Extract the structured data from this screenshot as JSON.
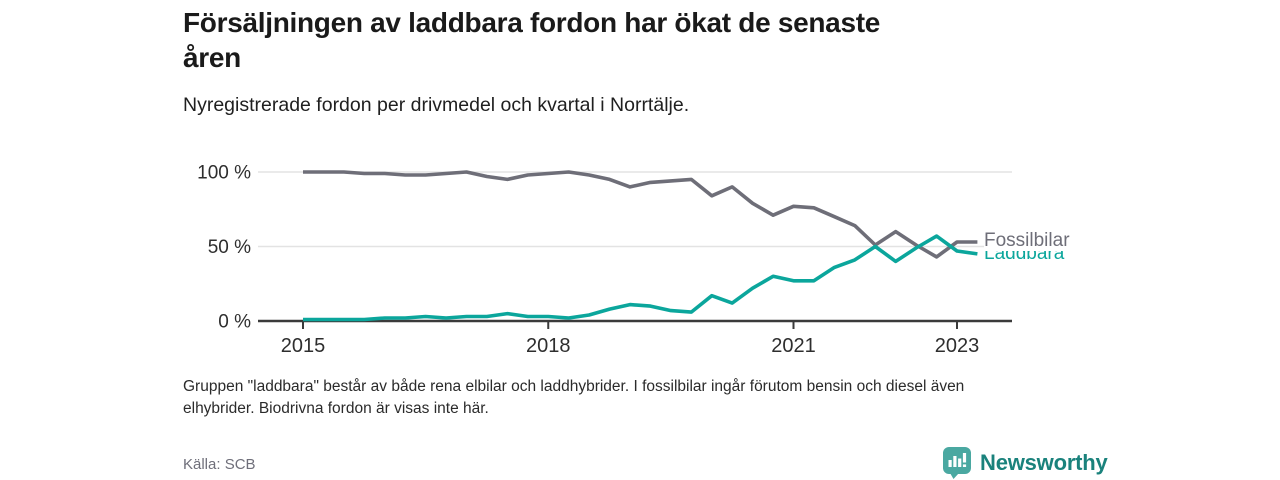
{
  "header": {
    "title": "Försäljningen av laddbara fordon har ökat de senaste åren",
    "title_line1": "Försäljningen av laddbara fordon har ökat de senaste",
    "title_line2": "åren",
    "subtitle": "Nyregistrerade fordon per drivmedel och kvartal i Norrtälje."
  },
  "footer": {
    "footnote_line1": "Gruppen \"laddbara\" består av både rena elbilar och laddhybrider. I fossilbilar ingår förutom bensin och diesel även",
    "footnote_line2": "elhybrider. Biodrivna fordon är visas inte här.",
    "source": "Källa: SCB",
    "brand": "Newsworthy"
  },
  "colors": {
    "fossil_line": "#6e6e78",
    "laddbara_line": "#0ba69c",
    "axis": "#3b3b3b",
    "gridline": "#e3e3e3",
    "tick_label": "#2e2e2e",
    "brand_icon_teal": "#4aa8a1",
    "brand_text_teal": "#1a827c"
  },
  "chart_data": {
    "type": "line",
    "title": "Försäljningen av laddbara fordon har ökat de senaste åren",
    "subtitle": "Nyregistrerade fordon per drivmedel och kvartal i Norrtälje.",
    "unit": "%",
    "x_start": "2015 Q1",
    "x_end": "2023 Q2",
    "points_per_year": 4,
    "ylim": [
      0,
      100
    ],
    "grid": "horizontal",
    "legend_position": "line-end-right",
    "y_ticks": [
      100,
      50,
      0
    ],
    "y_tick_labels": [
      "100 %",
      "50 %",
      "0 %"
    ],
    "x_tick_years": [
      2015,
      2018,
      2021,
      2023
    ],
    "x_tick_labels": [
      "2015",
      "2018",
      "2021",
      "2023"
    ],
    "x_labels": [
      "2015 Q1",
      "2015 Q2",
      "2015 Q3",
      "2015 Q4",
      "2016 Q1",
      "2016 Q2",
      "2016 Q3",
      "2016 Q4",
      "2017 Q1",
      "2017 Q2",
      "2017 Q3",
      "2017 Q4",
      "2018 Q1",
      "2018 Q2",
      "2018 Q3",
      "2018 Q4",
      "2019 Q1",
      "2019 Q2",
      "2019 Q3",
      "2019 Q4",
      "2020 Q1",
      "2020 Q2",
      "2020 Q3",
      "2020 Q4",
      "2021 Q1",
      "2021 Q2",
      "2021 Q3",
      "2021 Q4",
      "2022 Q1",
      "2022 Q2",
      "2022 Q3",
      "2022 Q4",
      "2023 Q1",
      "2023 Q2"
    ],
    "series": [
      {
        "name": "Fossilbilar",
        "color": "#6e6e78",
        "values": [
          100,
          100,
          100,
          99,
          99,
          98,
          98,
          99,
          100,
          97,
          95,
          98,
          99,
          100,
          98,
          95,
          90,
          93,
          94,
          95,
          84,
          90,
          79,
          71,
          77,
          76,
          70,
          64,
          51,
          60,
          51,
          43,
          53,
          53
        ]
      },
      {
        "name": "Laddbara",
        "color": "#0ba69c",
        "values": [
          1,
          1,
          1,
          1,
          2,
          2,
          3,
          2,
          3,
          3,
          5,
          3,
          3,
          2,
          4,
          8,
          11,
          10,
          7,
          6,
          17,
          12,
          22,
          30,
          27,
          27,
          36,
          41,
          50,
          40,
          49,
          57,
          47,
          45
        ]
      }
    ]
  }
}
